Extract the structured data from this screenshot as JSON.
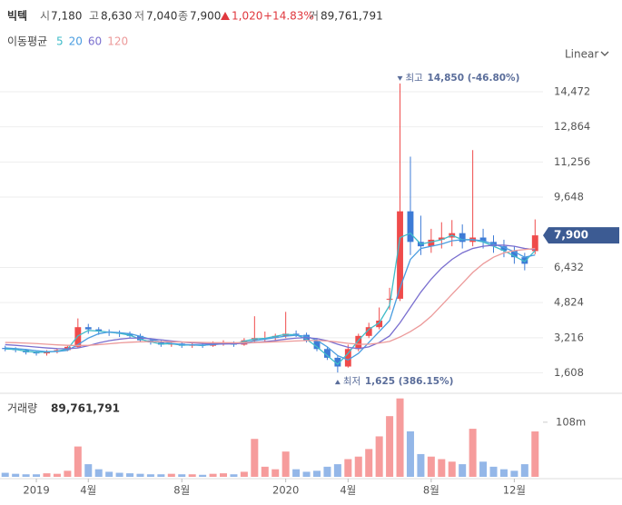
{
  "header": {
    "name": "빅텍",
    "open_label": "시",
    "open": "7,180",
    "high_label": "고",
    "high": "8,630",
    "low_label": "저",
    "low": "7,040",
    "close_label": "종",
    "close": "7,900",
    "change": "1,020",
    "change_pct": "+14.83%",
    "volume_label": "거",
    "volume": "89,761,791"
  },
  "legend": {
    "title": "이동평균"
  },
  "scale_button": "Linear",
  "chart_data": [
    {
      "type": "candlestick",
      "open": [
        2750,
        2700,
        2650,
        2550,
        2500,
        2600,
        2650,
        2800,
        3700,
        3600,
        3500,
        3450,
        3400,
        3300,
        3100,
        3000,
        2900,
        2950,
        2850,
        2900,
        2850,
        2950,
        3000,
        2900,
        3100,
        3200,
        3200,
        3300,
        3400,
        3350,
        3100,
        2700,
        2300,
        1900,
        2700,
        3300,
        3700,
        5000,
        5000,
        9000,
        7600,
        7400,
        7700,
        7800,
        8000,
        7600,
        7800,
        7600,
        7400,
        7200,
        6900,
        7180
      ],
      "high": [
        2850,
        2780,
        2700,
        2600,
        2650,
        2700,
        2850,
        4100,
        3850,
        3700,
        3600,
        3550,
        3500,
        3400,
        3200,
        3100,
        3050,
        3000,
        3000,
        2980,
        3050,
        3100,
        3050,
        3200,
        4200,
        3500,
        3400,
        4400,
        3550,
        3450,
        3200,
        2800,
        2400,
        2900,
        3400,
        3900,
        4600,
        5500,
        14850,
        11500,
        8800,
        8200,
        8500,
        8600,
        8400,
        11800,
        8200,
        7900,
        7700,
        7400,
        7100,
        8630
      ],
      "low": [
        2600,
        2550,
        2450,
        2400,
        2400,
        2500,
        2600,
        2750,
        3400,
        3350,
        3300,
        3250,
        3200,
        3000,
        2900,
        2800,
        2800,
        2750,
        2750,
        2750,
        2800,
        2850,
        2800,
        2850,
        3000,
        3050,
        3100,
        3200,
        3250,
        3000,
        2600,
        2200,
        1625,
        1850,
        2600,
        3200,
        3600,
        4500,
        4900,
        7000,
        7000,
        7100,
        7300,
        7400,
        7300,
        7400,
        7300,
        7100,
        6900,
        6600,
        6300,
        7040
      ],
      "close": [
        2700,
        2650,
        2550,
        2500,
        2600,
        2650,
        2800,
        3700,
        3600,
        3500,
        3450,
        3400,
        3300,
        3100,
        3000,
        2900,
        2950,
        2850,
        2900,
        2850,
        2950,
        3000,
        2900,
        3100,
        3200,
        3200,
        3300,
        3400,
        3350,
        3100,
        2700,
        2300,
        1900,
        2700,
        3300,
        3700,
        4000,
        5000,
        9000,
        7600,
        7400,
        7700,
        7800,
        8000,
        7600,
        7800,
        7600,
        7400,
        7200,
        6900,
        6600,
        7900
      ],
      "up_color": "#ef4b4b",
      "down_color": "#3d7bd6",
      "series": [
        {
          "name": "5",
          "color": "#3fbcc9",
          "values": [
            2700,
            2680,
            2600,
            2550,
            2560,
            2600,
            2700,
            3300,
            3550,
            3520,
            3470,
            3420,
            3330,
            3150,
            3030,
            2930,
            2940,
            2880,
            2890,
            2860,
            2930,
            2980,
            2920,
            3060,
            3160,
            3190,
            3280,
            3370,
            3350,
            3150,
            2800,
            2400,
            2000,
            2500,
            3100,
            3600,
            3900,
            4700,
            7800,
            8000,
            7500,
            7600,
            7700,
            7900,
            7700,
            7700,
            7600,
            7400,
            7200,
            6950,
            6700,
            7200
          ]
        },
        {
          "name": "20",
          "color": "#4a9de0",
          "values": [
            2750,
            2720,
            2680,
            2620,
            2580,
            2590,
            2640,
            2900,
            3200,
            3400,
            3480,
            3450,
            3400,
            3280,
            3150,
            3030,
            2960,
            2910,
            2890,
            2880,
            2900,
            2940,
            2950,
            2990,
            3080,
            3150,
            3220,
            3290,
            3330,
            3280,
            3100,
            2800,
            2400,
            2200,
            2500,
            3000,
            3500,
            4000,
            5500,
            6800,
            7300,
            7400,
            7500,
            7650,
            7700,
            7700,
            7650,
            7500,
            7350,
            7150,
            6900,
            7000
          ]
        },
        {
          "name": "60",
          "color": "#7a6fcf",
          "values": [
            2900,
            2870,
            2830,
            2790,
            2750,
            2720,
            2710,
            2750,
            2850,
            2980,
            3080,
            3150,
            3200,
            3200,
            3170,
            3120,
            3070,
            3020,
            2980,
            2950,
            2930,
            2930,
            2940,
            2960,
            3000,
            3040,
            3090,
            3150,
            3200,
            3220,
            3180,
            3080,
            2920,
            2780,
            2720,
            2800,
            3000,
            3300,
            3900,
            4600,
            5300,
            5900,
            6400,
            6800,
            7100,
            7300,
            7400,
            7450,
            7450,
            7400,
            7300,
            7250
          ]
        },
        {
          "name": "120",
          "color": "#ec9a9a",
          "values": [
            3000,
            2990,
            2970,
            2950,
            2920,
            2890,
            2870,
            2860,
            2870,
            2900,
            2940,
            2980,
            3010,
            3030,
            3040,
            3040,
            3030,
            3020,
            3010,
            3000,
            2990,
            2990,
            2990,
            2990,
            3000,
            3010,
            3030,
            3050,
            3070,
            3090,
            3090,
            3070,
            3020,
            2960,
            2920,
            2920,
            2970,
            3050,
            3250,
            3500,
            3800,
            4200,
            4700,
            5200,
            5700,
            6200,
            6600,
            6900,
            7100,
            7200,
            7250,
            7300
          ]
        }
      ],
      "ylim": [
        800,
        15550
      ],
      "yticks": [
        {
          "value": 1608,
          "label": "1,608"
        },
        {
          "value": 3216,
          "label": "3,216"
        },
        {
          "value": 4824,
          "label": "4,824"
        },
        {
          "value": 6432,
          "label": "6,432"
        },
        {
          "value": 9648,
          "label": "9,648"
        },
        {
          "value": 11256,
          "label": "11,256"
        },
        {
          "value": 12864,
          "label": "12,864"
        },
        {
          "value": 14472,
          "label": "14,472"
        }
      ],
      "grid": true,
      "high_annotation": {
        "label": "최고",
        "text": "14,850 (-46.80%)"
      },
      "low_annotation": {
        "label": "최저",
        "text": "1,625 (386.15%)"
      },
      "price_tag": {
        "value": 7900,
        "label": "7,900"
      }
    },
    {
      "type": "bar",
      "title": "거래량",
      "title_value": "89,761,791",
      "categories": [
        null,
        null,
        null,
        "2019",
        null,
        null,
        null,
        null,
        "4월",
        null,
        null,
        null,
        null,
        null,
        null,
        null,
        null,
        "8월",
        null,
        null,
        null,
        null,
        null,
        null,
        null,
        null,
        null,
        "2020",
        null,
        null,
        null,
        null,
        null,
        "4월",
        null,
        null,
        null,
        null,
        null,
        null,
        null,
        "8월",
        null,
        null,
        null,
        null,
        null,
        null,
        null,
        "12월",
        null,
        null
      ],
      "values": [
        8000000,
        6000000,
        5000000,
        5000000,
        7000000,
        6000000,
        12000000,
        60000000,
        25000000,
        15000000,
        10000000,
        8000000,
        7000000,
        6000000,
        5000000,
        5000000,
        6000000,
        5000000,
        5000000,
        4000000,
        6000000,
        7000000,
        5000000,
        10000000,
        75000000,
        20000000,
        15000000,
        50000000,
        15000000,
        10000000,
        12000000,
        20000000,
        25000000,
        35000000,
        40000000,
        55000000,
        80000000,
        120000000,
        155000000,
        90000000,
        45000000,
        40000000,
        35000000,
        30000000,
        25000000,
        95000000,
        30000000,
        20000000,
        15000000,
        12000000,
        25000000,
        89761791
      ],
      "ylim": [
        0,
        158000000
      ],
      "yticks": [
        {
          "value": 108000000,
          "label": "108m"
        }
      ]
    }
  ]
}
